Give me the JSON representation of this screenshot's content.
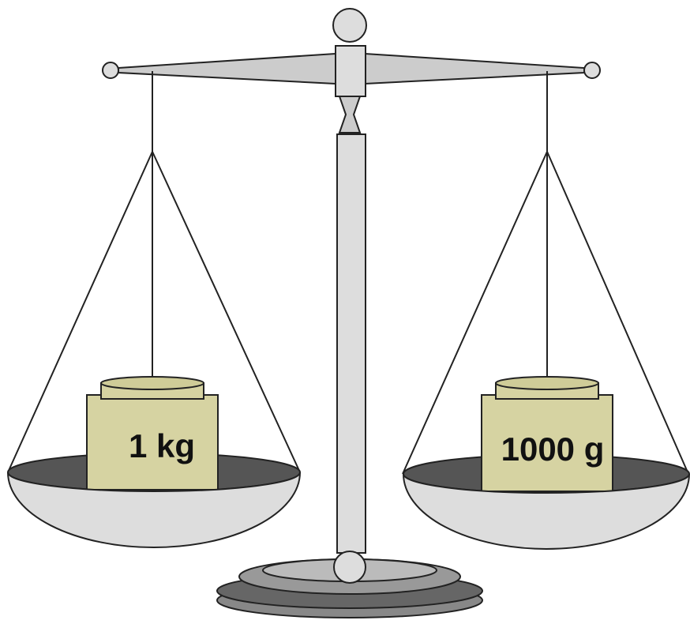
{
  "weights": [
    {
      "label": "1 kg"
    },
    {
      "label": "1000 g"
    }
  ]
}
